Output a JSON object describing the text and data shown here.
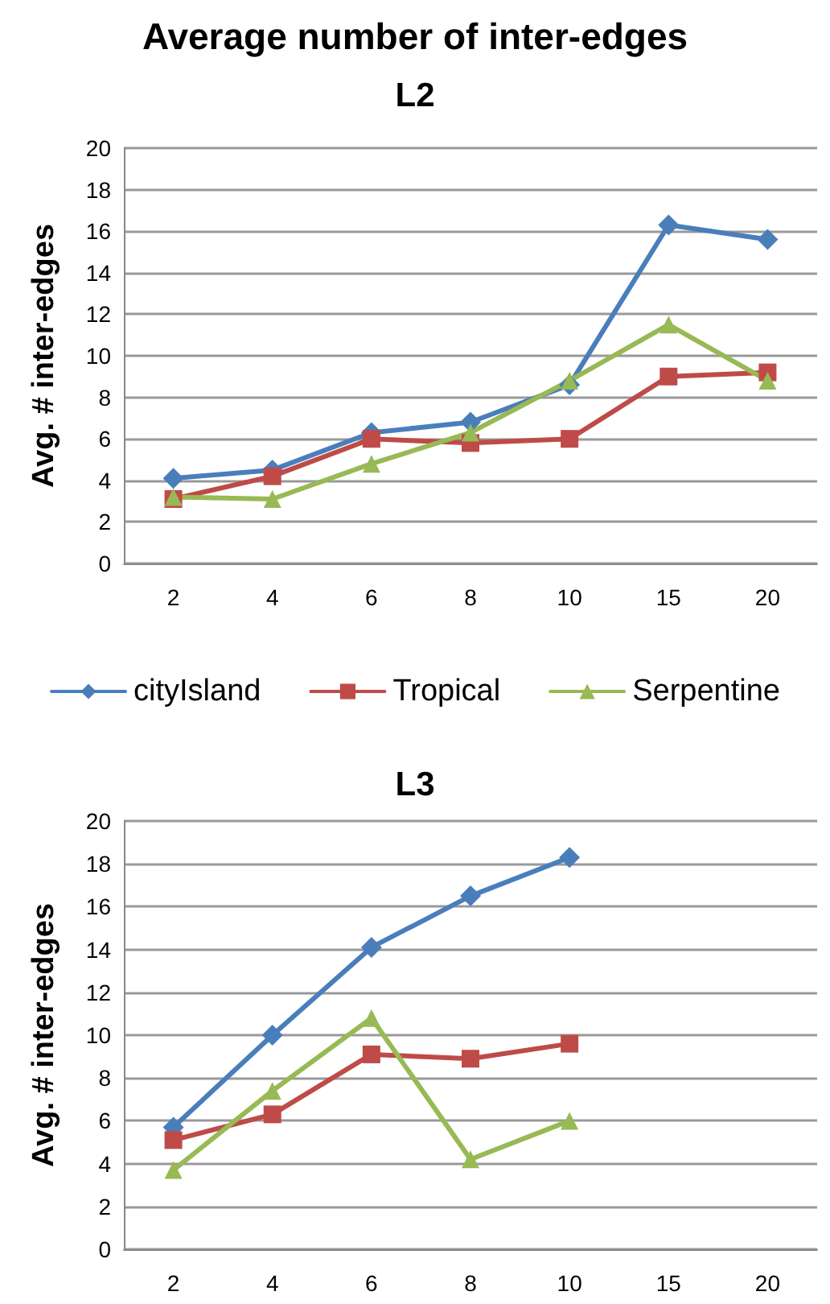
{
  "chart_data": [
    {
      "type": "line",
      "title": "Average number of inter-edges",
      "subtitle": "L2",
      "ylabel": "Avg. # inter-edges",
      "categories": [
        "2",
        "4",
        "6",
        "8",
        "10",
        "15",
        "20"
      ],
      "ylim": [
        0,
        20
      ],
      "yticks": [
        0,
        2,
        4,
        6,
        8,
        10,
        12,
        14,
        16,
        18,
        20
      ],
      "grid": "y",
      "legend": "bottom",
      "series": [
        {
          "name": "cityIsland",
          "color": "#4a7ebb",
          "marker": "diamond",
          "values": [
            4.1,
            4.5,
            6.3,
            6.8,
            8.6,
            16.3,
            15.6
          ]
        },
        {
          "name": "Tropical",
          "color": "#be4b48",
          "marker": "square",
          "values": [
            3.1,
            4.2,
            6.0,
            5.8,
            6.0,
            9.0,
            9.2
          ]
        },
        {
          "name": "Serpentine",
          "color": "#98b954",
          "marker": "triangle",
          "values": [
            3.2,
            3.1,
            4.8,
            6.3,
            8.8,
            11.5,
            8.8
          ]
        }
      ]
    },
    {
      "type": "line",
      "title": "L3",
      "ylabel": "Avg. # inter-edges",
      "categories": [
        "2",
        "4",
        "6",
        "8",
        "10",
        "15",
        "20"
      ],
      "ylim": [
        0,
        20
      ],
      "yticks": [
        0,
        2,
        4,
        6,
        8,
        10,
        12,
        14,
        16,
        18,
        20
      ],
      "grid": "y",
      "series": [
        {
          "color": "#4a7ebb",
          "marker": "diamond",
          "values": [
            5.7,
            10.0,
            14.1,
            16.5,
            18.3,
            null,
            null
          ]
        },
        {
          "color": "#be4b48",
          "marker": "square",
          "values": [
            5.1,
            6.3,
            9.1,
            8.9,
            9.6,
            null,
            null
          ]
        },
        {
          "color": "#98b954",
          "marker": "triangle",
          "values": [
            3.7,
            7.4,
            10.8,
            4.2,
            6.0,
            null,
            null
          ]
        }
      ]
    }
  ]
}
